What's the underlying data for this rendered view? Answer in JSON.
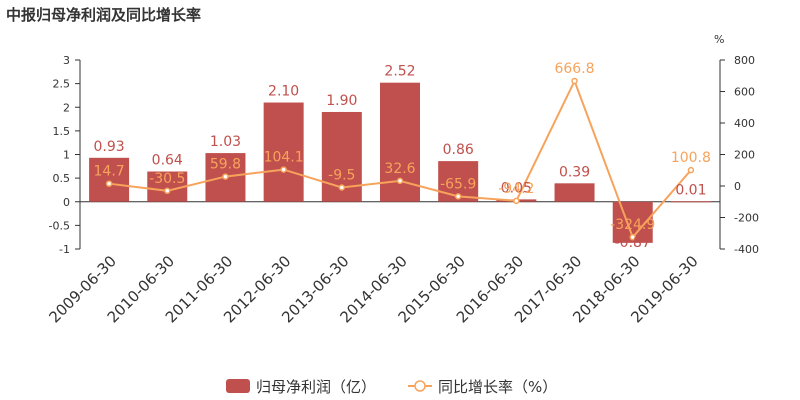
{
  "chart_data": {
    "type": "bar",
    "title": "中报归母净利润及同比增长率",
    "categories": [
      "2009-06-30",
      "2010-06-30",
      "2011-06-30",
      "2012-06-30",
      "2013-06-30",
      "2014-06-30",
      "2015-06-30",
      "2016-06-30",
      "2017-06-30",
      "2018-06-30",
      "2019-06-30"
    ],
    "series": [
      {
        "name": "归母净利润（亿）",
        "type": "bar",
        "axis": "left",
        "values": [
          0.93,
          0.64,
          1.03,
          2.1,
          1.9,
          2.52,
          0.86,
          0.05,
          0.39,
          -0.87,
          0.01
        ],
        "labels": [
          "0.93",
          "0.64",
          "1.03",
          "2.10",
          "1.90",
          "2.52",
          "0.86",
          "0.05",
          "0.39",
          "-0.87",
          "0.01"
        ]
      },
      {
        "name": "同比增长率（%）",
        "type": "line",
        "axis": "right",
        "values": [
          14.7,
          -30.5,
          59.8,
          104.1,
          -9.5,
          32.6,
          -65.9,
          -94.2,
          666.8,
          -324.9,
          100.8
        ],
        "labels": [
          "14.7",
          "-30.5",
          "59.8",
          "104.1",
          "-9.5",
          "32.6",
          "-65.9",
          "-94.2",
          "666.8",
          "-324.9",
          "100.8"
        ]
      }
    ],
    "y_left": {
      "ylim": [
        -1,
        3
      ],
      "ticks": [
        "3",
        "2.5",
        "2",
        "1.5",
        "1",
        "0.5",
        "0",
        "-0.5",
        "-1"
      ]
    },
    "y_right": {
      "ylim": [
        -400,
        800
      ],
      "unit": "%",
      "ticks": [
        "800",
        "600",
        "400",
        "200",
        "0",
        "-200",
        "-400"
      ]
    },
    "grid": false,
    "legend": "bottom",
    "colors": {
      "bar": "#c0504d",
      "line": "#f7a35c",
      "axis": "#333333"
    }
  }
}
